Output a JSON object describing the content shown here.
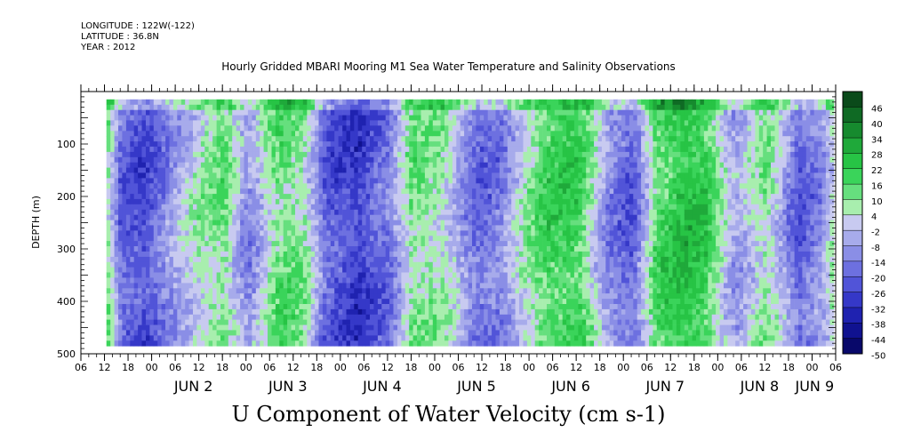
{
  "header": {
    "longitude": "LONGITUDE : 122W(-122)",
    "latitude": "LATITUDE : 36.8N",
    "year": "YEAR : 2012"
  },
  "chart_data": {
    "type": "heatmap",
    "title": "Hourly Gridded MBARI Mooring M1 Sea Water Temperature and Salinity Observations",
    "xlabel": "U Component of Water Velocity (cm s-1)",
    "ylabel": "DEPTH (m)",
    "x_axis": {
      "hour_labels": [
        "06",
        "12",
        "18",
        "00",
        "06",
        "12",
        "18",
        "00",
        "06",
        "12",
        "18",
        "00",
        "06",
        "12",
        "18",
        "00",
        "06",
        "12",
        "18",
        "00",
        "06",
        "12",
        "18",
        "00",
        "06",
        "12",
        "18",
        "00",
        "06",
        "12",
        "18",
        "00",
        "06"
      ],
      "day_labels": [
        "JUN  2",
        "JUN  3",
        "JUN  4",
        "JUN  5",
        "JUN  6",
        "JUN  7",
        "JUN  8",
        "JUN  9"
      ],
      "range_hours": [
        0,
        192
      ]
    },
    "y_axis": {
      "ticks": [
        100,
        200,
        300,
        400,
        500
      ],
      "range": [
        0,
        500
      ],
      "reversed": true
    },
    "colorbar": {
      "levels": [
        "46",
        "40",
        "34",
        "28",
        "22",
        "16",
        "10",
        "4",
        "-2",
        "-8",
        "-14",
        "-20",
        "-26",
        "-32",
        "-38",
        "-44",
        "-50"
      ],
      "range": [
        -50,
        50
      ],
      "colors": [
        "#0a4a1a",
        "#0f6a24",
        "#168a2e",
        "#1fa93a",
        "#27c445",
        "#3ad45a",
        "#66df7e",
        "#a8eeae",
        "#c8caf0",
        "#a7abeb",
        "#8a8ee6",
        "#6d70e0",
        "#5154d8",
        "#3538c8",
        "#1f22b0",
        "#101290",
        "#08086a"
      ]
    },
    "data_extent": {
      "x_hours": [
        6.5,
        191
      ],
      "depth_m": [
        15,
        485
      ]
    },
    "band_pattern": {
      "note": "alternating bands of positive (green) and negative (blue/purple) U velocity through time",
      "times_h": [
        6.5,
        10,
        16,
        22,
        30,
        36,
        42,
        50,
        56,
        62,
        70,
        78,
        84,
        92,
        100,
        106,
        112,
        118,
        126,
        134,
        140,
        146,
        152,
        158,
        166,
        174,
        182,
        188,
        191
      ],
      "values": [
        8,
        -20,
        -25,
        -10,
        6,
        12,
        -12,
        14,
        10,
        -20,
        -28,
        -15,
        12,
        6,
        -18,
        -14,
        4,
        18,
        20,
        -12,
        -20,
        16,
        24,
        22,
        -8,
        10,
        -20,
        -10,
        6
      ]
    }
  }
}
